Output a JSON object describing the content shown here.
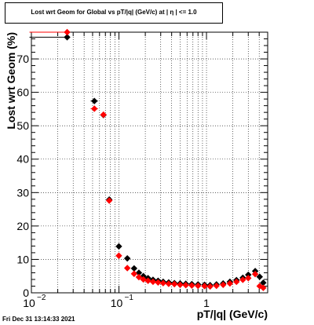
{
  "chart_data": {
    "type": "scatter",
    "title": "Lost wrt Geom for Global vs pT/|q| (GeV/c) at |  η | <= 1.0",
    "xlabel": "pT/|q| (GeV/c)",
    "ylabel": "Lost wrt Geom (%)",
    "xscale": "log",
    "xlim": [
      0.01,
      5.0
    ],
    "ylim": [
      0,
      78
    ],
    "x_ticks": [
      {
        "value": 0.01,
        "base": "10",
        "exp": "−2"
      },
      {
        "value": 0.1,
        "base": "10",
        "exp": "−1"
      },
      {
        "value": 1,
        "base": "1",
        "exp": ""
      }
    ],
    "y_ticks": [
      0,
      10,
      20,
      30,
      40,
      50,
      60,
      70
    ],
    "grid": true,
    "series": [
      {
        "color": "#000000",
        "points": [
          {
            "x": 0.0256,
            "y": 76.5,
            "xerr": [
              0.0095,
              0.0256
            ]
          },
          {
            "x": 0.0524,
            "y": 57.4,
            "xerr": [
              0.0475,
              0.0575
            ]
          },
          {
            "x": 0.0665,
            "y": 53.2
          },
          {
            "x": 0.0775,
            "y": 27.9
          },
          {
            "x": 0.0998,
            "y": 13.9,
            "xerr": [
              0.0935,
              0.106
            ]
          },
          {
            "x": 0.1246,
            "y": 10.3
          },
          {
            "x": 0.149,
            "y": 7.3
          },
          {
            "x": 0.169,
            "y": 6.0
          },
          {
            "x": 0.19,
            "y": 5.0
          },
          {
            "x": 0.215,
            "y": 4.4
          },
          {
            "x": 0.245,
            "y": 3.9
          },
          {
            "x": 0.28,
            "y": 3.6
          },
          {
            "x": 0.32,
            "y": 3.3
          },
          {
            "x": 0.37,
            "y": 3.1
          },
          {
            "x": 0.43,
            "y": 2.9
          },
          {
            "x": 0.5,
            "y": 2.8
          },
          {
            "x": 0.58,
            "y": 2.7
          },
          {
            "x": 0.68,
            "y": 2.6
          },
          {
            "x": 0.8,
            "y": 2.5
          },
          {
            "x": 0.95,
            "y": 2.4
          },
          {
            "x": 1.1,
            "y": 2.3
          },
          {
            "x": 1.3,
            "y": 2.5
          },
          {
            "x": 1.55,
            "y": 2.8
          },
          {
            "x": 1.85,
            "y": 3.3
          },
          {
            "x": 2.2,
            "y": 3.8
          },
          {
            "x": 2.6,
            "y": 4.5
          },
          {
            "x": 3.0,
            "y": 5.4
          },
          {
            "x": 3.6,
            "y": 6.5
          },
          {
            "x": 4.05,
            "y": 4.8
          },
          {
            "x": 4.45,
            "y": 3.0
          }
        ]
      },
      {
        "color": "#ff0000",
        "points": [
          {
            "x": 0.0256,
            "y": 78.0,
            "xerr": [
              0.0095,
              0.0256
            ]
          },
          {
            "x": 0.0524,
            "y": 55.1,
            "xerr": [
              0.0475,
              0.0575
            ]
          },
          {
            "x": 0.0665,
            "y": 53.3
          },
          {
            "x": 0.0775,
            "y": 27.6
          },
          {
            "x": 0.0998,
            "y": 11.1,
            "xerr": [
              0.0935,
              0.106
            ]
          },
          {
            "x": 0.1246,
            "y": 7.4
          },
          {
            "x": 0.149,
            "y": 5.7
          },
          {
            "x": 0.169,
            "y": 4.7
          },
          {
            "x": 0.19,
            "y": 4.0
          },
          {
            "x": 0.215,
            "y": 3.6
          },
          {
            "x": 0.245,
            "y": 3.3
          },
          {
            "x": 0.28,
            "y": 3.1
          },
          {
            "x": 0.32,
            "y": 2.9
          },
          {
            "x": 0.37,
            "y": 2.7
          },
          {
            "x": 0.43,
            "y": 2.6
          },
          {
            "x": 0.5,
            "y": 2.4
          },
          {
            "x": 0.58,
            "y": 2.3
          },
          {
            "x": 0.68,
            "y": 2.2
          },
          {
            "x": 0.8,
            "y": 2.1
          },
          {
            "x": 0.95,
            "y": 2.0
          },
          {
            "x": 1.1,
            "y": 1.9
          },
          {
            "x": 1.3,
            "y": 2.1
          },
          {
            "x": 1.55,
            "y": 2.4
          },
          {
            "x": 1.85,
            "y": 2.8
          },
          {
            "x": 2.2,
            "y": 3.3
          },
          {
            "x": 2.6,
            "y": 3.9
          },
          {
            "x": 3.0,
            "y": 4.4
          },
          {
            "x": 3.6,
            "y": 5.6
          },
          {
            "x": 4.05,
            "y": 2.0
          },
          {
            "x": 4.45,
            "y": 1.5
          }
        ]
      }
    ]
  },
  "timestamp": "Fri Dec 31 13:14:33 2021"
}
